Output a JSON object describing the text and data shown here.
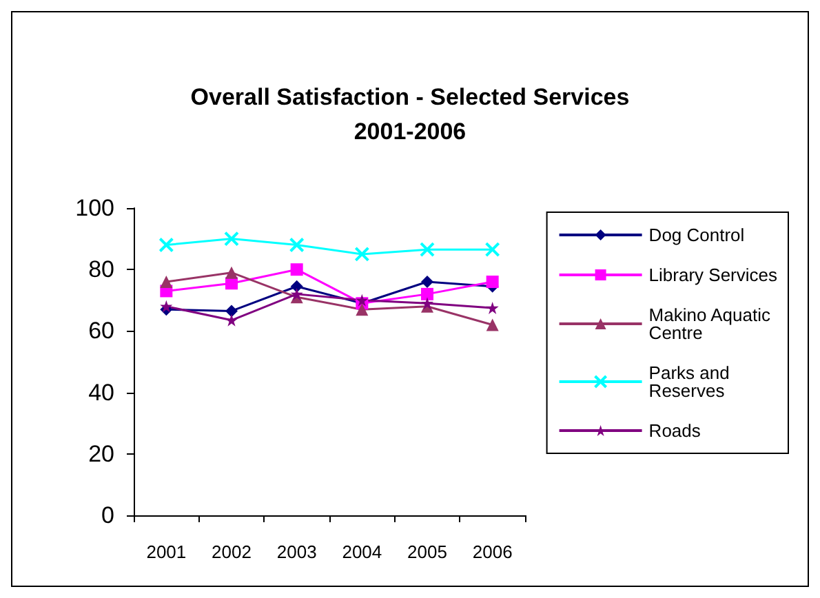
{
  "chart_data": {
    "type": "line",
    "title": "Overall Satisfaction - Selected Services",
    "subtitle": "2001-2006",
    "categories": [
      "2001",
      "2002",
      "2003",
      "2004",
      "2005",
      "2006"
    ],
    "series": [
      {
        "name": "Dog Control",
        "color": "#000080",
        "marker": "diamond",
        "values": [
          67,
          66.5,
          74.5,
          69,
          76,
          74.5
        ]
      },
      {
        "name": "Library Services",
        "color": "#ff00ff",
        "marker": "square",
        "values": [
          73,
          75.5,
          80,
          69,
          72,
          76
        ]
      },
      {
        "name": "Makino Aquatic Centre",
        "color": "#993366",
        "marker": "triangle",
        "values": [
          76,
          79,
          71,
          67,
          68,
          62
        ]
      },
      {
        "name": "Parks and Reserves",
        "color": "#00ffff",
        "marker": "cross",
        "values": [
          88,
          90,
          88,
          85,
          86.5,
          86.5
        ]
      },
      {
        "name": "Roads",
        "color": "#800080",
        "marker": "star",
        "values": [
          68,
          63.5,
          72,
          70,
          69,
          67.5
        ]
      }
    ],
    "ylim": [
      0,
      100
    ],
    "yticks": [
      0,
      20,
      40,
      60,
      80,
      100
    ],
    "grid": false,
    "legend": "right"
  }
}
